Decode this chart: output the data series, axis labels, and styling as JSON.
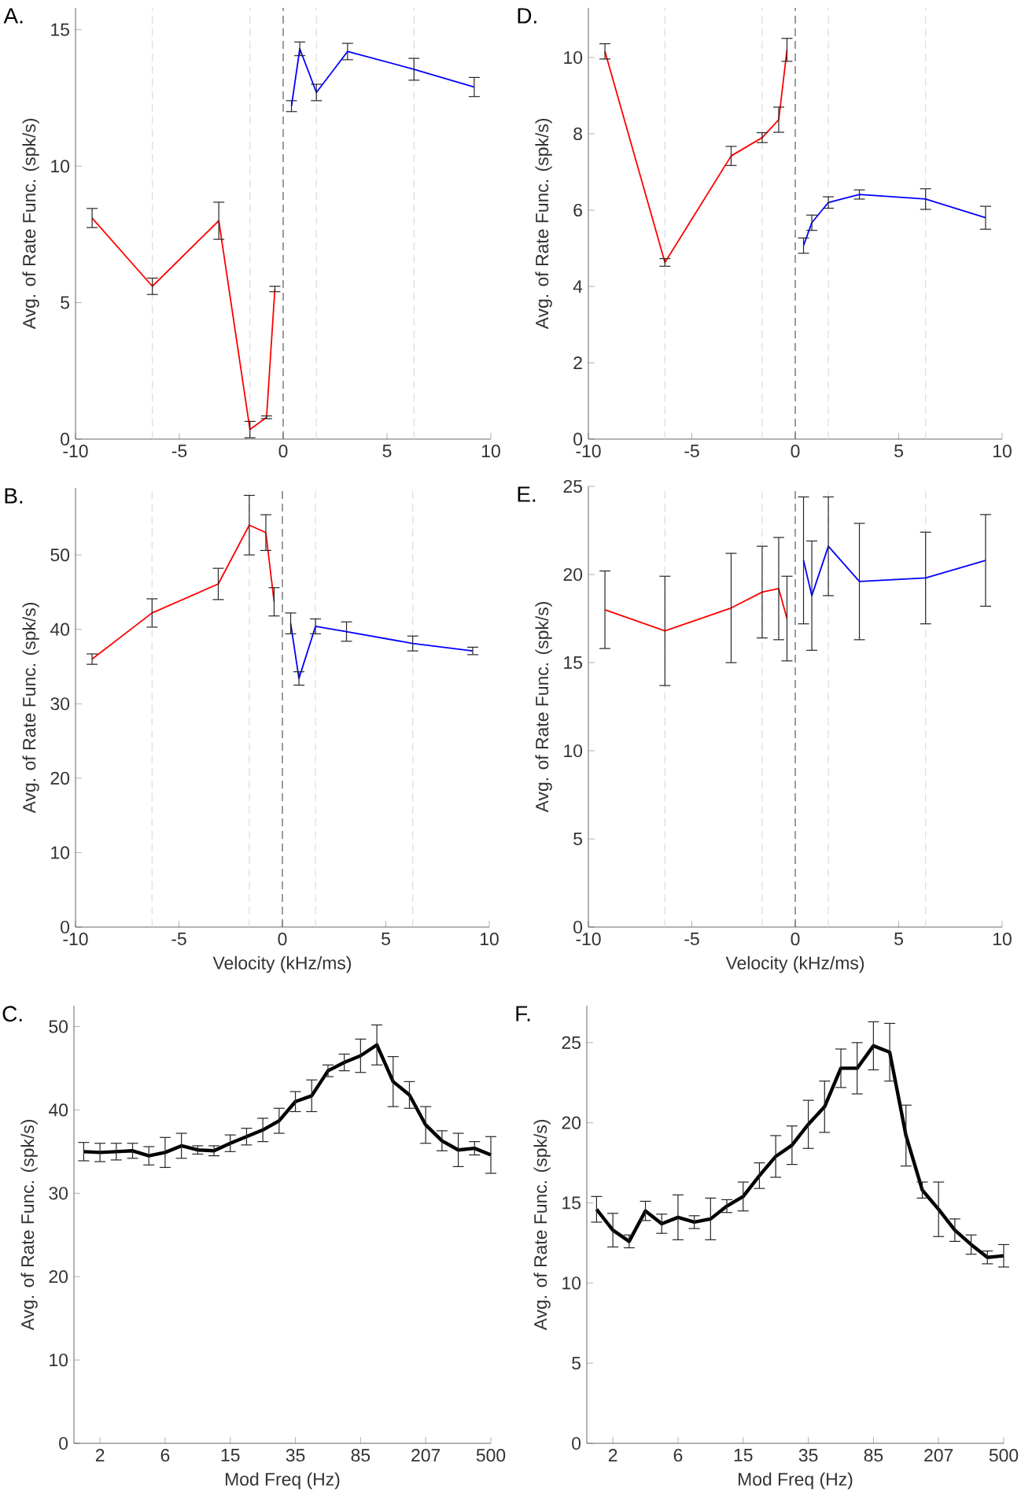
{
  "chart_data": [
    {
      "type": "line",
      "title": "A.",
      "ylabel": "Avg. of Rate Func. (spk/s)",
      "xlim": [
        -10,
        10
      ],
      "xticks": [
        -10,
        -5,
        0,
        5,
        10
      ],
      "ylim": [
        0,
        15.8
      ],
      "yticks": [
        0,
        5,
        10,
        15
      ],
      "series": [
        {
          "color": "#ff0000",
          "x": [
            -9.2,
            -6.3,
            -3.1,
            -1.6,
            -0.8,
            -0.4
          ],
          "values": [
            8.1,
            5.6,
            8.0,
            0.35,
            0.8,
            5.5
          ],
          "errors": [
            0.35,
            0.3,
            0.68,
            0.3,
            0.05,
            0.1
          ]
        },
        {
          "color": "#0000ff",
          "x": [
            0.4,
            0.8,
            1.6,
            3.1,
            6.3,
            9.2
          ],
          "values": [
            12.2,
            14.3,
            12.7,
            14.2,
            13.55,
            12.9
          ],
          "errors": [
            0.2,
            0.25,
            0.3,
            0.3,
            0.4,
            0.35
          ]
        }
      ],
      "ref_lines": [
        {
          "axis": "x",
          "value": -6.3,
          "color": "#dcdcdc",
          "line_style": "dashed"
        },
        {
          "axis": "x",
          "value": -1.6,
          "color": "#dcdcdc",
          "line_style": "dashed"
        },
        {
          "axis": "x",
          "value": 1.6,
          "color": "#dcdcdc",
          "line_style": "dashed"
        },
        {
          "axis": "x",
          "value": 6.3,
          "color": "#dcdcdc",
          "line_style": "dashed"
        },
        {
          "axis": "x",
          "value": 0,
          "color": "#5a5a5a",
          "line_style": "dashed"
        }
      ]
    },
    {
      "type": "line",
      "title": "D.",
      "ylabel": "Avg. of Rate Func. (spk/s)",
      "xlim": [
        -10,
        10
      ],
      "xticks": [
        -10,
        -5,
        0,
        5,
        10
      ],
      "ylim": [
        0,
        11.3
      ],
      "yticks": [
        0,
        2,
        4,
        6,
        8,
        10
      ],
      "series": [
        {
          "color": "#ff0000",
          "x": [
            -9.2,
            -6.3,
            -3.1,
            -1.6,
            -0.8,
            -0.4
          ],
          "values": [
            10.16,
            4.63,
            7.42,
            7.9,
            8.37,
            10.2
          ],
          "errors": [
            0.2,
            0.1,
            0.25,
            0.13,
            0.33,
            0.3
          ]
        },
        {
          "color": "#0000ff",
          "x": [
            0.4,
            0.8,
            1.6,
            3.1,
            6.3,
            9.2
          ],
          "values": [
            5.07,
            5.67,
            6.2,
            6.41,
            6.29,
            5.8
          ],
          "errors": [
            0.2,
            0.2,
            0.15,
            0.12,
            0.27,
            0.3
          ]
        }
      ],
      "ref_lines": [
        {
          "axis": "x",
          "value": -6.3,
          "color": "#dcdcdc",
          "line_style": "dashed"
        },
        {
          "axis": "x",
          "value": -1.6,
          "color": "#dcdcdc",
          "line_style": "dashed"
        },
        {
          "axis": "x",
          "value": 1.6,
          "color": "#dcdcdc",
          "line_style": "dashed"
        },
        {
          "axis": "x",
          "value": 6.3,
          "color": "#dcdcdc",
          "line_style": "dashed"
        },
        {
          "axis": "x",
          "value": 0,
          "color": "#5a5a5a",
          "line_style": "dashed"
        }
      ]
    },
    {
      "type": "line",
      "title": "B.",
      "xlabel": "Velocity (kHz/ms)",
      "ylabel": "Avg. of Rate Func. (spk/s)",
      "xlim": [
        -10,
        10
      ],
      "xticks": [
        -10,
        -5,
        0,
        5,
        10
      ],
      "ylim": [
        0,
        59
      ],
      "yticks": [
        0,
        10,
        20,
        30,
        40,
        50
      ],
      "series": [
        {
          "color": "#ff0000",
          "x": [
            -9.2,
            -6.3,
            -3.1,
            -1.6,
            -0.8,
            -0.4
          ],
          "values": [
            36.0,
            42.2,
            46.1,
            54.0,
            53.0,
            43.7
          ],
          "errors": [
            0.7,
            1.9,
            2.1,
            4.0,
            2.4,
            1.9
          ]
        },
        {
          "color": "#0000ff",
          "x": [
            0.4,
            0.8,
            1.6,
            3.1,
            6.3,
            9.2
          ],
          "values": [
            40.8,
            33.4,
            40.4,
            39.7,
            38.1,
            37.1
          ],
          "errors": [
            1.4,
            0.9,
            1.0,
            1.3,
            1.0,
            0.5
          ]
        }
      ],
      "ref_lines": [
        {
          "axis": "x",
          "value": -6.3,
          "color": "#dcdcdc",
          "line_style": "dashed"
        },
        {
          "axis": "x",
          "value": -1.6,
          "color": "#dcdcdc",
          "line_style": "dashed"
        },
        {
          "axis": "x",
          "value": 1.6,
          "color": "#dcdcdc",
          "line_style": "dashed"
        },
        {
          "axis": "x",
          "value": 6.3,
          "color": "#dcdcdc",
          "line_style": "dashed"
        },
        {
          "axis": "x",
          "value": 0,
          "color": "#5a5a5a",
          "line_style": "dashed"
        }
      ]
    },
    {
      "type": "line",
      "title": "E.",
      "xlabel": "Velocity (kHz/ms)",
      "ylabel": "Avg. of Rate Func. (spk/s)",
      "xlim": [
        -10,
        10
      ],
      "xticks": [
        -10,
        -5,
        0,
        5,
        10
      ],
      "ylim": [
        0,
        25
      ],
      "yticks": [
        0,
        5,
        10,
        15,
        20,
        25
      ],
      "series": [
        {
          "color": "#ff0000",
          "x": [
            -9.2,
            -6.3,
            -3.1,
            -1.6,
            -0.8,
            -0.4
          ],
          "values": [
            18.0,
            16.8,
            18.1,
            19.0,
            19.2,
            17.5
          ],
          "errors": [
            2.2,
            3.1,
            3.1,
            2.6,
            2.9,
            2.4
          ]
        },
        {
          "color": "#0000ff",
          "x": [
            0.4,
            0.8,
            1.6,
            3.1,
            6.3,
            9.2
          ],
          "values": [
            20.8,
            18.8,
            21.6,
            19.6,
            19.8,
            20.8
          ],
          "errors": [
            3.6,
            3.1,
            2.8,
            3.3,
            2.6,
            2.6
          ]
        }
      ],
      "ref_lines": [
        {
          "axis": "x",
          "value": -6.3,
          "color": "#dcdcdc",
          "line_style": "dashed"
        },
        {
          "axis": "x",
          "value": -1.6,
          "color": "#dcdcdc",
          "line_style": "dashed"
        },
        {
          "axis": "x",
          "value": 1.6,
          "color": "#dcdcdc",
          "line_style": "dashed"
        },
        {
          "axis": "x",
          "value": 6.3,
          "color": "#dcdcdc",
          "line_style": "dashed"
        },
        {
          "axis": "x",
          "value": 0,
          "color": "#5a5a5a",
          "line_style": "dashed"
        }
      ]
    },
    {
      "type": "line",
      "title": "C.",
      "xlabel": "Mod Freq (Hz)",
      "ylabel": "Avg. of Rate Func. (spk/s)",
      "ylim": [
        0,
        52.5
      ],
      "yticks": [
        0,
        10,
        20,
        30,
        40,
        50
      ],
      "categories": [
        null,
        "2",
        null,
        null,
        null,
        "6",
        null,
        null,
        null,
        "15",
        null,
        null,
        null,
        "35",
        null,
        null,
        null,
        "85",
        null,
        null,
        null,
        "207",
        null,
        null,
        null,
        "500"
      ],
      "series": [
        {
          "color": "#000000",
          "values": [
            35.0,
            34.9,
            35.0,
            35.1,
            34.5,
            34.9,
            35.7,
            35.2,
            35.1,
            36.0,
            36.8,
            37.6,
            38.7,
            41.0,
            41.7,
            44.7,
            45.7,
            46.5,
            47.8,
            43.4,
            41.8,
            38.2,
            36.3,
            35.2,
            35.4,
            34.6
          ],
          "errors": [
            1.1,
            1.1,
            1.0,
            0.9,
            1.1,
            1.8,
            1.5,
            0.5,
            0.6,
            1.0,
            1.0,
            1.4,
            1.5,
            1.2,
            1.9,
            0.7,
            1.0,
            2.0,
            2.4,
            3.0,
            1.6,
            2.2,
            1.2,
            2.0,
            0.8,
            2.2
          ]
        }
      ]
    },
    {
      "type": "line",
      "title": "F.",
      "xlabel": "Mod Freq (Hz)",
      "ylabel": "Avg. of Rate Func. (spk/s)",
      "ylim": [
        0,
        27.3
      ],
      "yticks": [
        0,
        5,
        10,
        15,
        20,
        25
      ],
      "categories": [
        null,
        "2",
        null,
        null,
        null,
        "6",
        null,
        null,
        null,
        "15",
        null,
        null,
        null,
        "35",
        null,
        null,
        null,
        "85",
        null,
        null,
        null,
        "207",
        null,
        null,
        null,
        "500"
      ],
      "series": [
        {
          "color": "#000000",
          "values": [
            14.6,
            13.3,
            12.6,
            14.5,
            13.7,
            14.1,
            13.8,
            14.0,
            14.8,
            15.4,
            16.7,
            17.9,
            18.6,
            19.9,
            21.0,
            23.4,
            23.4,
            24.8,
            24.4,
            19.2,
            15.8,
            14.6,
            13.3,
            12.4,
            11.6,
            11.7
          ],
          "errors": [
            0.8,
            1.05,
            0.4,
            0.6,
            0.6,
            1.4,
            0.4,
            1.3,
            0.4,
            0.9,
            0.8,
            1.3,
            1.2,
            1.5,
            1.6,
            1.2,
            1.6,
            1.5,
            1.8,
            1.9,
            0.5,
            1.7,
            0.7,
            0.6,
            0.4,
            0.7
          ]
        }
      ]
    }
  ]
}
